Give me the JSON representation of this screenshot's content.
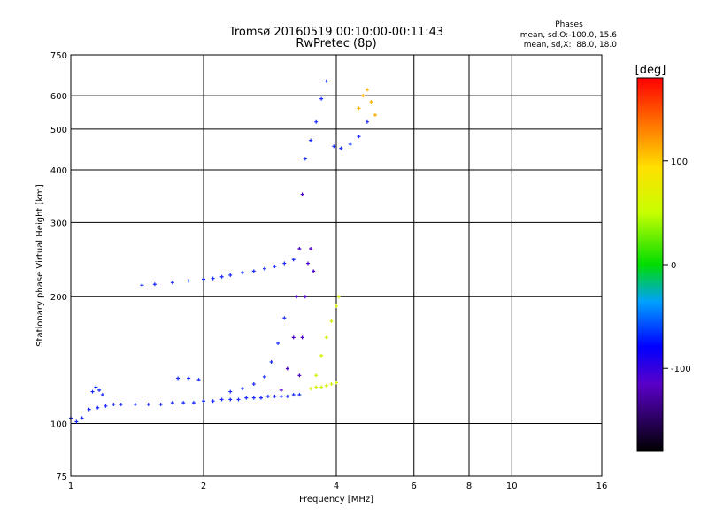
{
  "header": {
    "title": "Tromsø 20160519 00:10:00-00:11:43",
    "subtitle": "RwPretec (8p)",
    "phases_title": "Phases",
    "phases_line1": "mean, sd,O:-100.0, 15.6",
    "phases_line2": "mean, sd,X:  88.0, 18.0"
  },
  "chart_data": {
    "type": "scatter",
    "title": "Tromsø 20160519 00:10:00-00:11:43",
    "subtitle": "RwPretec (8p)",
    "xlabel": "Frequency [MHz]",
    "ylabel": "Stationary phase Virtual Height [km]",
    "x_scale": "log",
    "y_scale": "log",
    "xlim": [
      1,
      16
    ],
    "ylim": [
      75,
      750
    ],
    "x_ticks": [
      1,
      2,
      4,
      6,
      8,
      10,
      16
    ],
    "x_tick_labels": [
      "1",
      "2",
      "4",
      "6",
      "8",
      "10",
      "16"
    ],
    "y_ticks": [
      75,
      100,
      200,
      300,
      400,
      500,
      600,
      750
    ],
    "y_tick_labels": [
      "75",
      "100",
      "200",
      "300",
      "400",
      "500",
      "600",
      "750"
    ],
    "grid": true,
    "colorbar": {
      "label": "[deg]",
      "range": [
        -180,
        180
      ],
      "ticks": [
        -100,
        0,
        100
      ],
      "tick_labels": [
        "-100",
        "0",
        "100"
      ]
    },
    "traces": [
      {
        "name": "",
        "x": [
          1.0,
          1.03,
          1.06,
          1.1,
          1.15,
          1.2,
          1.25,
          1.3,
          1.4,
          1.5,
          1.6,
          1.7,
          1.8,
          1.9,
          2.0,
          2.1,
          2.2,
          2.3,
          2.4,
          2.5,
          2.6,
          2.7,
          2.8,
          2.9,
          3.0,
          3.1,
          3.2,
          3.3
        ],
        "y": [
          103,
          101,
          103,
          108,
          109,
          110,
          111,
          111,
          111,
          111,
          111,
          112,
          112,
          112,
          113,
          113,
          114,
          114,
          114,
          115,
          115,
          115,
          116,
          116,
          116,
          116,
          117,
          117
        ],
        "phase": -100
      },
      {
        "name": "",
        "x": [
          1.12,
          1.14,
          1.16,
          1.18
        ],
        "y": [
          119,
          122,
          120,
          117
        ],
        "phase": -100
      },
      {
        "name": "",
        "x": [
          1.45,
          1.55,
          1.7,
          1.85,
          2.0,
          2.1,
          2.2,
          2.3,
          2.45,
          2.6,
          2.75,
          2.9,
          3.05,
          3.2
        ],
        "y": [
          213,
          214,
          216,
          218,
          220,
          221,
          223,
          225,
          228,
          230,
          233,
          236,
          240,
          245
        ],
        "phase": -100
      },
      {
        "name": "",
        "x": [
          1.75,
          1.85,
          1.95
        ],
        "y": [
          128,
          128,
          127
        ],
        "phase": -100
      },
      {
        "name": "",
        "x": [
          2.3,
          2.45,
          2.6,
          2.75,
          2.85,
          2.95,
          3.05
        ],
        "y": [
          119,
          121,
          124,
          129,
          140,
          155,
          178
        ],
        "phase": -95
      },
      {
        "name": "",
        "x": [
          3.0,
          3.1,
          3.2,
          3.25,
          3.3,
          3.35
        ],
        "y": [
          120,
          135,
          160,
          200,
          260,
          350
        ],
        "phase": -125
      },
      {
        "name": "",
        "x": [
          3.3,
          3.35,
          3.4,
          3.45,
          3.5,
          3.55
        ],
        "y": [
          130,
          160,
          200,
          240,
          260,
          230
        ],
        "phase": -120
      },
      {
        "name": "",
        "x": [
          3.5,
          3.6,
          3.7,
          3.8,
          3.9,
          4.0
        ],
        "y": [
          121,
          122,
          122,
          123,
          124,
          125
        ],
        "phase": 85
      },
      {
        "name": "",
        "x": [
          3.6,
          3.7,
          3.8,
          3.9,
          4.0,
          4.05
        ],
        "y": [
          130,
          145,
          160,
          175,
          190,
          200
        ],
        "phase": 90
      },
      {
        "name": "",
        "x": [
          3.4,
          3.5,
          3.6,
          3.7,
          3.8
        ],
        "y": [
          425,
          470,
          520,
          590,
          650
        ],
        "phase": -110
      },
      {
        "name": "",
        "x": [
          3.95,
          4.1,
          4.3,
          4.5,
          4.7
        ],
        "y": [
          455,
          450,
          460,
          480,
          520
        ],
        "phase": -100
      },
      {
        "name": "",
        "x": [
          4.5,
          4.6,
          4.7,
          4.8,
          4.9
        ],
        "y": [
          560,
          600,
          620,
          580,
          540
        ],
        "phase": 100
      }
    ]
  }
}
